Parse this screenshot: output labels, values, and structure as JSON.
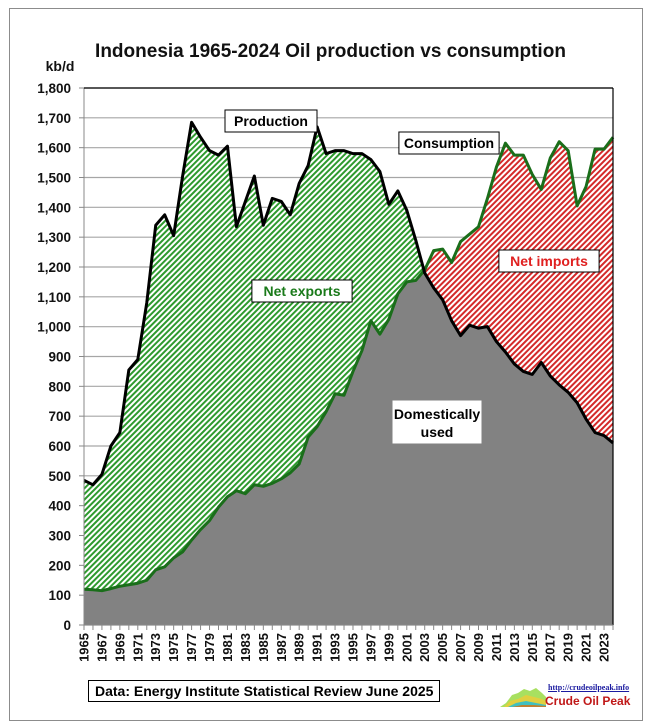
{
  "chart_data": {
    "type": "area",
    "title": "Indonesia 1965-2024 Oil production vs consumption",
    "ylabel": "kb/d",
    "xlabel": "",
    "ylim": [
      0,
      1800
    ],
    "xlim": [
      1965,
      2024
    ],
    "yticks": [
      0,
      100,
      200,
      300,
      400,
      500,
      600,
      700,
      800,
      900,
      1000,
      1100,
      1200,
      1300,
      1400,
      1500,
      1600,
      1700,
      1800
    ],
    "ytick_labels": [
      "0",
      "100",
      "200",
      "300",
      "400",
      "500",
      "600",
      "700",
      "800",
      "900",
      "1,000",
      "1,100",
      "1,200",
      "1,300",
      "1,400",
      "1,500",
      "1,600",
      "1,700",
      "1,800"
    ],
    "xtick_labels": [
      "1965",
      "1967",
      "1969",
      "1971",
      "1973",
      "1975",
      "1977",
      "1979",
      "1981",
      "1983",
      "1985",
      "1987",
      "1989",
      "1991",
      "1993",
      "1995",
      "1997",
      "1999",
      "2001",
      "2003",
      "2005",
      "2007",
      "2009",
      "2011",
      "2013",
      "2015",
      "2017",
      "2019",
      "2021",
      "2023"
    ],
    "grid": true,
    "x": [
      1965,
      1966,
      1967,
      1968,
      1969,
      1970,
      1971,
      1972,
      1973,
      1974,
      1975,
      1976,
      1977,
      1978,
      1979,
      1980,
      1981,
      1982,
      1983,
      1984,
      1985,
      1986,
      1987,
      1988,
      1989,
      1990,
      1991,
      1992,
      1993,
      1994,
      1995,
      1996,
      1997,
      1998,
      1999,
      2000,
      2001,
      2002,
      2003,
      2004,
      2005,
      2006,
      2007,
      2008,
      2009,
      2010,
      2011,
      2012,
      2013,
      2014,
      2015,
      2016,
      2017,
      2018,
      2019,
      2020,
      2021,
      2022,
      2023,
      2024
    ],
    "series": [
      {
        "name": "Production",
        "color": "#000000",
        "values": [
          485,
          470,
          505,
          600,
          645,
          855,
          890,
          1080,
          1340,
          1375,
          1305,
          1505,
          1685,
          1635,
          1590,
          1575,
          1605,
          1335,
          1420,
          1505,
          1340,
          1430,
          1420,
          1375,
          1480,
          1540,
          1670,
          1580,
          1590,
          1590,
          1580,
          1580,
          1560,
          1520,
          1410,
          1455,
          1390,
          1290,
          1180,
          1130,
          1090,
          1020,
          970,
          1005,
          995,
          1000,
          950,
          915,
          875,
          850,
          840,
          880,
          835,
          805,
          780,
          745,
          690,
          645,
          635,
          610
        ]
      },
      {
        "name": "Consumption",
        "color": "#1a6e1a",
        "values": [
          120,
          118,
          115,
          122,
          130,
          135,
          140,
          150,
          185,
          195,
          225,
          245,
          285,
          320,
          350,
          395,
          430,
          450,
          440,
          470,
          465,
          475,
          490,
          510,
          540,
          630,
          665,
          715,
          775,
          770,
          850,
          920,
          1020,
          975,
          1025,
          1110,
          1150,
          1155,
          1190,
          1255,
          1260,
          1215,
          1285,
          1310,
          1335,
          1430,
          1535,
          1615,
          1575,
          1575,
          1510,
          1460,
          1565,
          1620,
          1590,
          1405,
          1470,
          1595,
          1595,
          1635
        ]
      }
    ],
    "areas": {
      "net_exports": {
        "label": "Net exports",
        "color": "#1a7a1a",
        "fill": "#7fd07f"
      },
      "net_imports": {
        "label": "Net imports",
        "color": "#e02020",
        "fill": "#e86a6a"
      },
      "domestic": {
        "label": "Domestically used",
        "fill": "#828282"
      }
    },
    "annotations": [
      {
        "text": "Production",
        "series": "Production"
      },
      {
        "text": "Consumption",
        "series": "Consumption"
      },
      {
        "text": "Net exports",
        "area": "net_exports"
      },
      {
        "text": "Net imports",
        "area": "net_imports"
      },
      {
        "text": "Domestically",
        "area": "domestic"
      },
      {
        "text": "used",
        "area": "domestic"
      }
    ]
  },
  "footer": {
    "source": "Data: Energy Institute Statistical Review June 2025",
    "logo_url": "http://crudeoilpeak.info",
    "logo_name": "Crude Oil Peak"
  }
}
